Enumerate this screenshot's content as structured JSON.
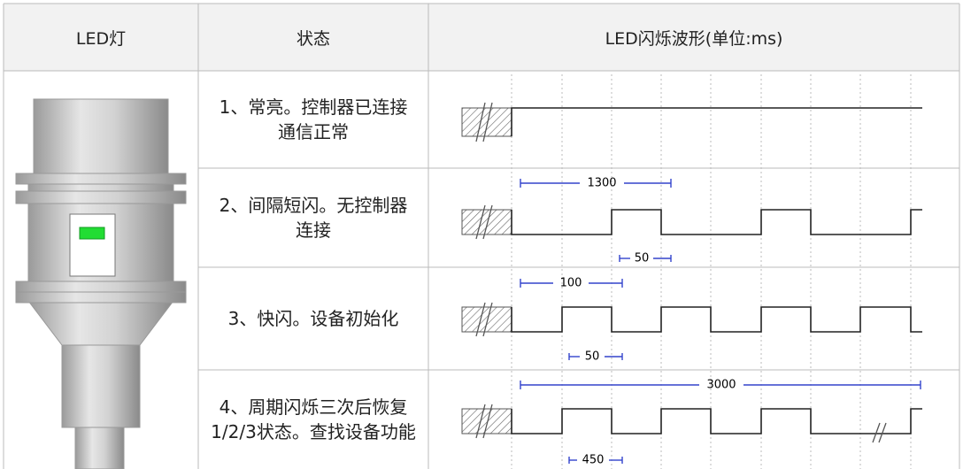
{
  "table": {
    "header": [
      "LED灯",
      "状态",
      "LED闪烁波形(单位:ms)"
    ],
    "rows": [
      {
        "status": "1、常亮。控制器已连接通信正常",
        "labels": []
      },
      {
        "status": "2、间隔短闪。无控制器连接",
        "labels": [
          "1300",
          "50"
        ]
      },
      {
        "status": "3、快闪。设备初始化",
        "labels": [
          "100",
          "50"
        ]
      },
      {
        "status": "4、周期闪烁三次后恢复1/2/3状态。查找设备功能",
        "labels": [
          "3000",
          "450"
        ]
      }
    ]
  }
}
